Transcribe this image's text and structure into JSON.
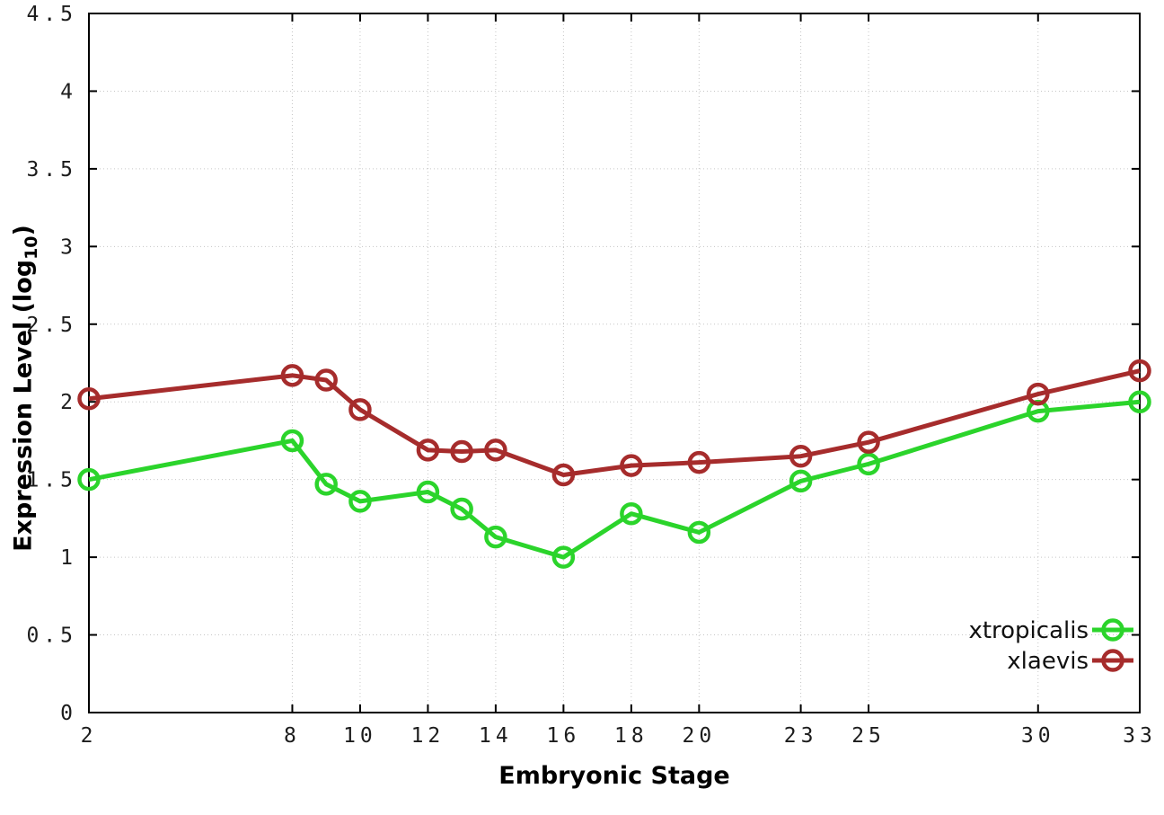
{
  "chart_data": {
    "type": "line",
    "title": "",
    "xlabel": "Embryonic Stage",
    "ylabel": "Expression Level (log10)",
    "ylabel_parts": {
      "main": "Expression Level (log",
      "sub": "10",
      "end": ")"
    },
    "xlim": [
      2,
      33
    ],
    "ylim": [
      0,
      4.5
    ],
    "x_ticks": [
      2,
      8,
      10,
      12,
      14,
      16,
      18,
      20,
      23,
      25,
      30,
      33
    ],
    "x_tick_labels": [
      "2",
      "8",
      "10",
      "12",
      "14",
      "16",
      "18",
      "20",
      "23",
      "25",
      "30",
      "33"
    ],
    "y_ticks": [
      0,
      0.5,
      1,
      1.5,
      2,
      2.5,
      3,
      3.5,
      4,
      4.5
    ],
    "y_tick_labels": [
      "0",
      "0.5",
      "1",
      "1.5",
      "2",
      "2.5",
      "3",
      "3.5",
      "4",
      "4.5"
    ],
    "grid": true,
    "legend_position": "bottom-right",
    "x": [
      2,
      8,
      9,
      10,
      12,
      13,
      14,
      16,
      18,
      20,
      23,
      25,
      30,
      33
    ],
    "series": [
      {
        "name": "xtropicalis",
        "color": "#2bd42b",
        "values": [
          1.5,
          1.75,
          1.47,
          1.36,
          1.42,
          1.31,
          1.13,
          1.0,
          1.28,
          1.16,
          1.49,
          1.6,
          1.94,
          2.0
        ]
      },
      {
        "name": "xlaevis",
        "color": "#a62c2c",
        "values": [
          2.02,
          2.17,
          2.14,
          1.95,
          1.69,
          1.68,
          1.69,
          1.53,
          1.59,
          1.61,
          1.65,
          1.74,
          2.05,
          2.2
        ]
      }
    ],
    "style": {
      "grid_color": "#c6c6c6",
      "axis_color": "#000000",
      "tick_label_color": "#1c1c1c",
      "background": "#ffffff"
    }
  }
}
